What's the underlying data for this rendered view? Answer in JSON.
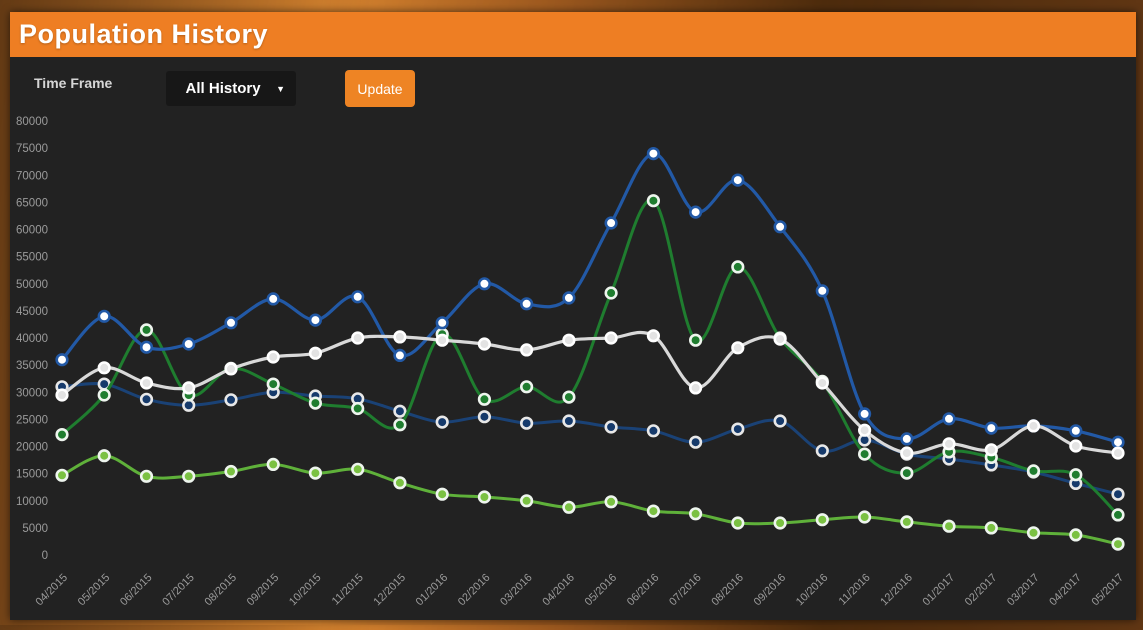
{
  "window": {
    "title": "Population History"
  },
  "controls": {
    "time_frame_label": "Time Frame",
    "time_frame_value": "All History",
    "dropdown_caret": "▼",
    "update_button": "Update"
  },
  "colors": {
    "header_orange": "#ee7e23",
    "button_orange": "#ee8424",
    "panel_bg": "#222222",
    "axis_text": "#9b9b9b"
  },
  "chart_data": {
    "type": "line",
    "title": "",
    "xlabel": "",
    "ylabel": "",
    "grid": false,
    "legend": null,
    "ylim": [
      0,
      80000
    ],
    "y_tick_step": 5000,
    "y_tick_labels": [
      "0",
      "5000",
      "10000",
      "15000",
      "20000",
      "25000",
      "30000",
      "35000",
      "40000",
      "45000",
      "50000",
      "55000",
      "60000",
      "65000",
      "70000",
      "75000",
      "80000"
    ],
    "x_labels": [
      "04/2015",
      "05/2015",
      "06/2015",
      "07/2015",
      "08/2015",
      "09/2015",
      "10/2015",
      "11/2015",
      "12/2015",
      "01/2016",
      "02/2016",
      "03/2016",
      "04/2016",
      "05/2016",
      "06/2016",
      "07/2016",
      "08/2016",
      "09/2016",
      "10/2016",
      "11/2016",
      "12/2016",
      "01/2017",
      "02/2017",
      "03/2017",
      "04/2017",
      "05/2017"
    ],
    "series": [
      {
        "name": "navy-lower-line",
        "color": "#1a4276",
        "marker_fill": "#163a6b",
        "marker_ring": "#e8e8e8",
        "line_width": 3,
        "values": [
          31000,
          31500,
          28700,
          27600,
          28600,
          30000,
          29300,
          28800,
          26500,
          24500,
          25500,
          24300,
          24700,
          23600,
          22900,
          20800,
          23200,
          24700,
          19200,
          21200,
          18600,
          17700,
          16600,
          15300,
          13200,
          11200
        ]
      },
      {
        "name": "green-dark-line",
        "color": "#1f7d2f",
        "marker_fill": "#1f7d2f",
        "marker_ring": "#eef5ee",
        "line_width": 3,
        "values": [
          22200,
          29500,
          41500,
          29500,
          34400,
          31500,
          28000,
          27000,
          24000,
          40700,
          28700,
          31000,
          29100,
          48300,
          65300,
          39600,
          53100,
          40000,
          32000,
          18600,
          15100,
          19000,
          18000,
          15500,
          14800,
          7400
        ]
      },
      {
        "name": "lime-line",
        "color": "#5fb13a",
        "marker_fill": "#7ac142",
        "marker_ring": "#eef5ee",
        "line_width": 3,
        "values": [
          14700,
          18300,
          14500,
          14500,
          15400,
          16700,
          15100,
          15800,
          13300,
          11200,
          10700,
          10000,
          8800,
          9800,
          8100,
          7600,
          5900,
          5900,
          6500,
          7000,
          6100,
          5300,
          5000,
          4100,
          3700,
          2000
        ]
      },
      {
        "name": "blue-upper-line",
        "color": "#2259a6",
        "marker_fill": "#ffffff",
        "marker_ring": "#2259a6",
        "line_width": 3.2,
        "values": [
          36000,
          44000,
          38300,
          38900,
          42800,
          47200,
          43300,
          47600,
          36800,
          42800,
          50000,
          46300,
          47400,
          61200,
          74000,
          63200,
          69100,
          60500,
          48700,
          26000,
          21400,
          25100,
          23400,
          23800,
          22900,
          20800
        ]
      },
      {
        "name": "white-line",
        "color": "#d9d9d9",
        "marker_fill": "#e3e3e3",
        "marker_ring": "#ffffff",
        "line_width": 3.2,
        "values": [
          29500,
          34500,
          31700,
          30800,
          34300,
          36500,
          37200,
          40000,
          40200,
          39600,
          38900,
          37800,
          39600,
          40000,
          40400,
          30800,
          38200,
          39800,
          31700,
          23000,
          18800,
          20500,
          19400,
          23800,
          20100,
          18800
        ]
      }
    ]
  }
}
